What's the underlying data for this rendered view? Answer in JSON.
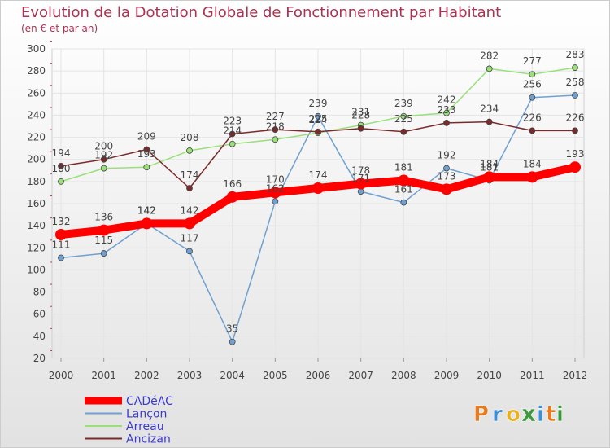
{
  "chart_data": {
    "type": "line",
    "title": "Evolution de la Dotation Globale de Fonctionnement par Habitant",
    "subtitle": "(en € et par an)",
    "xlabel": "",
    "ylabel": "",
    "categories": [
      "2000",
      "2001",
      "2002",
      "2003",
      "2004",
      "2005",
      "2006",
      "2007",
      "2008",
      "2009",
      "2010",
      "2011",
      "2012"
    ],
    "yticks": [
      "20",
      "40",
      "60",
      "80",
      "100",
      "120",
      "140",
      "160",
      "180",
      "200",
      "220",
      "240",
      "260",
      "280",
      "300"
    ],
    "ylim": [
      20,
      300
    ],
    "grid": true,
    "legend_position": "bottom-left",
    "series": [
      {
        "name": "CADéAC",
        "color": "#ff0000",
        "values": [
          132,
          136,
          142,
          142,
          166,
          170,
          174,
          178,
          181,
          173,
          184,
          184,
          193
        ],
        "labels": [
          "132",
          "136",
          "142",
          "142",
          "166",
          "170",
          "174",
          "178",
          "181",
          "173",
          "184",
          "184",
          "193"
        ]
      },
      {
        "name": "Lançon",
        "color": "#6fa0d0",
        "values": [
          111,
          115,
          142,
          117,
          35,
          162,
          239,
          171,
          161,
          192,
          181,
          256,
          258
        ],
        "labels": [
          "111",
          "115",
          "142",
          "117",
          "35",
          "162",
          "239",
          "171",
          "161",
          "192",
          "181",
          "256",
          "258"
        ]
      },
      {
        "name": "Arreau",
        "color": "#99e07a",
        "values": [
          180,
          192,
          193,
          208,
          214,
          218,
          224,
          231,
          239,
          242,
          282,
          277,
          283
        ],
        "labels": [
          "180",
          "192",
          "193",
          "208",
          "214",
          "218",
          "224",
          "231",
          "239",
          "242",
          "282",
          "277",
          "283"
        ]
      },
      {
        "name": "Ancizan",
        "color": "#7a2a2a",
        "values": [
          194,
          200,
          209,
          174,
          223,
          227,
          225,
          228,
          225,
          233,
          234,
          226,
          226
        ],
        "labels": [
          "194",
          "200",
          "209",
          "174",
          "223",
          "227",
          "225",
          "228",
          "225",
          "233",
          "234",
          "226",
          "226"
        ]
      }
    ]
  },
  "brand": {
    "text": "Proxiti",
    "letters": [
      "P",
      "r",
      "o",
      "x",
      "i",
      "t",
      "i"
    ]
  },
  "colors": {
    "title": "#b03050",
    "label_text": "#444444",
    "grid": "#e6e6e6",
    "bg_top": "#ffffff",
    "bg_bottom": "#e2e2e2"
  }
}
